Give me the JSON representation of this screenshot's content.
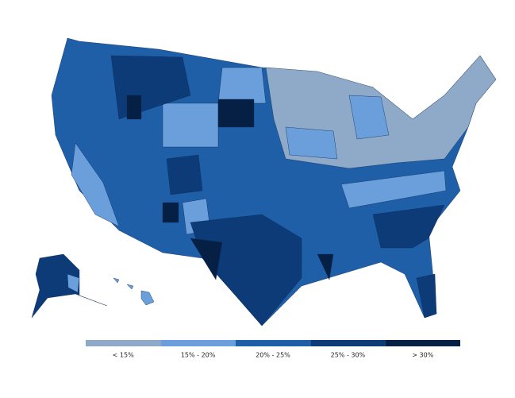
{
  "legend": {
    "items": [
      {
        "label": "< 15%",
        "color": "#8fa9c8"
      },
      {
        "label": "15% - 20%",
        "color": "#6b9fdc"
      },
      {
        "label": "20% - 25%",
        "color": "#1f5fa8"
      },
      {
        "label": "25% - 30%",
        "color": "#0d3b78"
      },
      {
        "label": "> 30%",
        "color": "#061f45"
      }
    ]
  }
}
